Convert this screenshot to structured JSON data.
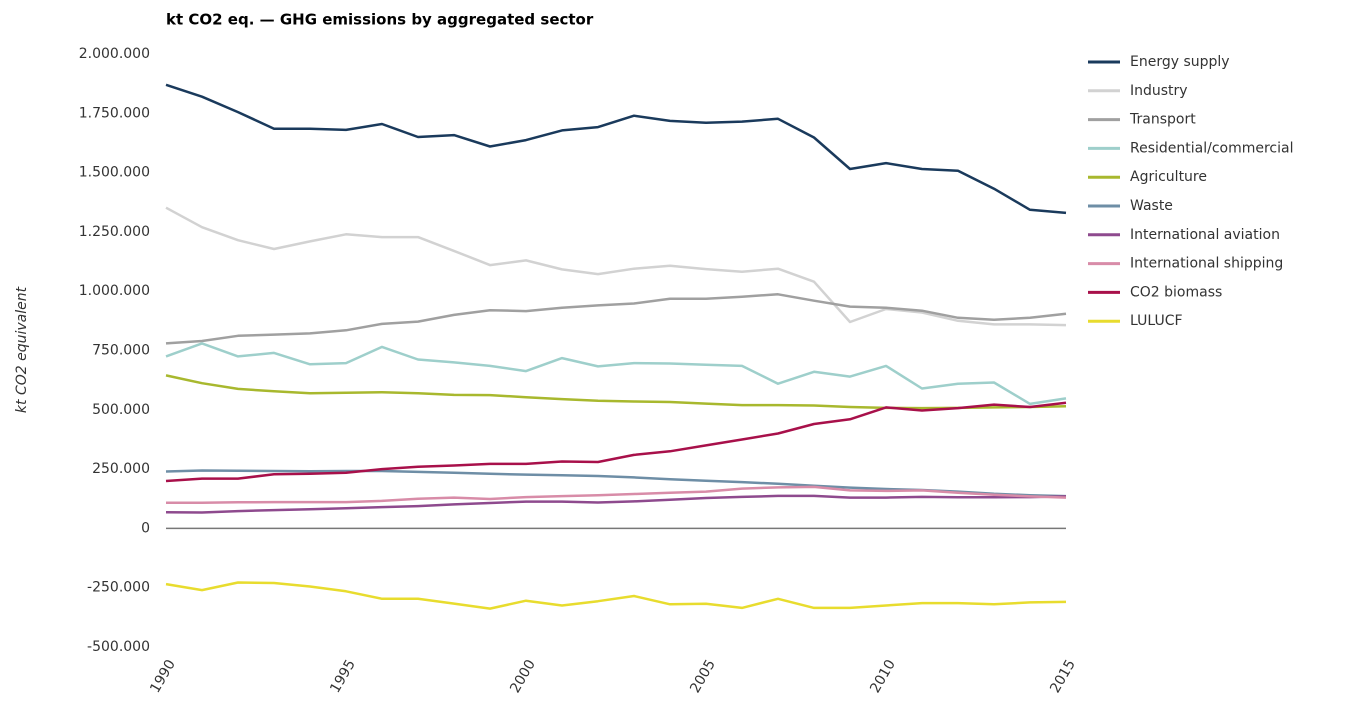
{
  "chart_data": {
    "type": "line",
    "title": "kt CO2 eq. — GHG emissions by aggregated sector",
    "y_label": "kt CO2 equivalent",
    "x": [
      1990,
      1991,
      1992,
      1993,
      1994,
      1995,
      1996,
      1997,
      1998,
      1999,
      2000,
      2001,
      2002,
      2003,
      2004,
      2005,
      2006,
      2007,
      2008,
      2009,
      2010,
      2011,
      2012,
      2013,
      2014,
      2015
    ],
    "xlim": [
      1990,
      2015
    ],
    "xticks": [
      1990,
      1995,
      2000,
      2005,
      2010,
      2015
    ],
    "ylim": [
      -500000,
      2000000
    ],
    "yticks": [
      {
        "value": -500000,
        "label": "-500.000"
      },
      {
        "value": -250000,
        "label": "-250.000"
      },
      0,
      {
        "value": 250000,
        "label": "250.000"
      },
      {
        "value": 500000,
        "label": "500.000"
      },
      {
        "value": 750000,
        "label": "750.000"
      },
      {
        "value": 1000000,
        "label": "1.000.000"
      },
      {
        "value": 1250000,
        "label": "1.250.000"
      },
      {
        "value": 1500000,
        "label": "1.500.000"
      },
      {
        "value": 1750000,
        "label": "1.750.000"
      },
      {
        "value": 2000000,
        "label": "2.000.000"
      }
    ],
    "grid": false,
    "legend": "right",
    "series": [
      {
        "name": "Energy supply",
        "color": "#1a3a5c",
        "values": [
          1870000,
          1820000,
          1755000,
          1685000,
          1685000,
          1680000,
          1705000,
          1650000,
          1658000,
          1610000,
          1637000,
          1678000,
          1692000,
          1740000,
          1718000,
          1710000,
          1715000,
          1727000,
          1648000,
          1515000,
          1540000,
          1515000,
          1508000,
          1432000,
          1343000,
          1330000
        ]
      },
      {
        "name": "Industry",
        "color": "#d2d2d2",
        "values": [
          1352000,
          1270000,
          1215000,
          1178000,
          1210000,
          1240000,
          1228000,
          1228000,
          1170000,
          1110000,
          1130000,
          1092000,
          1072000,
          1095000,
          1107000,
          1093000,
          1082000,
          1095000,
          1040000,
          870000,
          925000,
          910000,
          875000,
          860000,
          860000,
          857000
        ]
      },
      {
        "name": "Transport",
        "color": "#a0a0a0",
        "values": [
          780000,
          790000,
          812000,
          817000,
          822000,
          835000,
          862000,
          872000,
          900000,
          920000,
          916000,
          930000,
          940000,
          948000,
          968000,
          968000,
          977000,
          987000,
          960000,
          935000,
          930000,
          918000,
          888000,
          880000,
          888000,
          905000
        ]
      },
      {
        "name": "Residential/commercial",
        "color": "#9ecfcb",
        "values": [
          725000,
          780000,
          725000,
          740000,
          692000,
          697000,
          765000,
          712000,
          700000,
          685000,
          663000,
          718000,
          683000,
          697000,
          695000,
          690000,
          685000,
          610000,
          660000,
          640000,
          685000,
          590000,
          610000,
          615000,
          525000,
          548000
        ]
      },
      {
        "name": "Agriculture",
        "color": "#a8b82e",
        "values": [
          645000,
          612000,
          588000,
          578000,
          570000,
          572000,
          574000,
          570000,
          563000,
          562000,
          553000,
          545000,
          538000,
          535000,
          533000,
          526000,
          520000,
          520000,
          518000,
          512000,
          508000,
          507000,
          508000,
          510000,
          512000,
          515000
        ]
      },
      {
        "name": "Waste",
        "color": "#6e8ea6",
        "values": [
          240000,
          244000,
          243000,
          242000,
          241000,
          242000,
          242000,
          238000,
          235000,
          230000,
          227000,
          224000,
          221000,
          215000,
          207000,
          201000,
          195000,
          188000,
          180000,
          172000,
          166000,
          162000,
          155000,
          146000,
          140000,
          136000
        ]
      },
      {
        "name": "International aviation",
        "color": "#8e4a8e",
        "values": [
          68000,
          67000,
          73000,
          77000,
          81000,
          85000,
          90000,
          94000,
          101000,
          107000,
          113000,
          113000,
          109000,
          114000,
          121000,
          128000,
          133000,
          137000,
          137000,
          130000,
          130000,
          133000,
          131000,
          131000,
          132000,
          135000
        ]
      },
      {
        "name": "International shipping",
        "color": "#d88ca8",
        "values": [
          108000,
          108000,
          110000,
          111000,
          111000,
          111000,
          116000,
          125000,
          130000,
          124000,
          132000,
          136000,
          140000,
          145000,
          150000,
          155000,
          168000,
          173000,
          175000,
          160000,
          158000,
          160000,
          150000,
          142000,
          135000,
          130000
        ]
      },
      {
        "name": "CO2 biomass",
        "color": "#a8104a",
        "values": [
          200000,
          210000,
          210000,
          228000,
          230000,
          235000,
          250000,
          260000,
          265000,
          272000,
          272000,
          282000,
          280000,
          310000,
          325000,
          350000,
          375000,
          400000,
          440000,
          460000,
          510000,
          497000,
          507000,
          522000,
          512000,
          530000
        ]
      },
      {
        "name": "LULUCF",
        "color": "#e8dc2e",
        "values": [
          -235000,
          -260000,
          -228000,
          -230000,
          -245000,
          -265000,
          -297000,
          -297000,
          -317000,
          -338000,
          -305000,
          -325000,
          -307000,
          -285000,
          -320000,
          -318000,
          -335000,
          -297000,
          -335000,
          -335000,
          -325000,
          -315000,
          -315000,
          -320000,
          -312000,
          -310000
        ]
      }
    ]
  }
}
